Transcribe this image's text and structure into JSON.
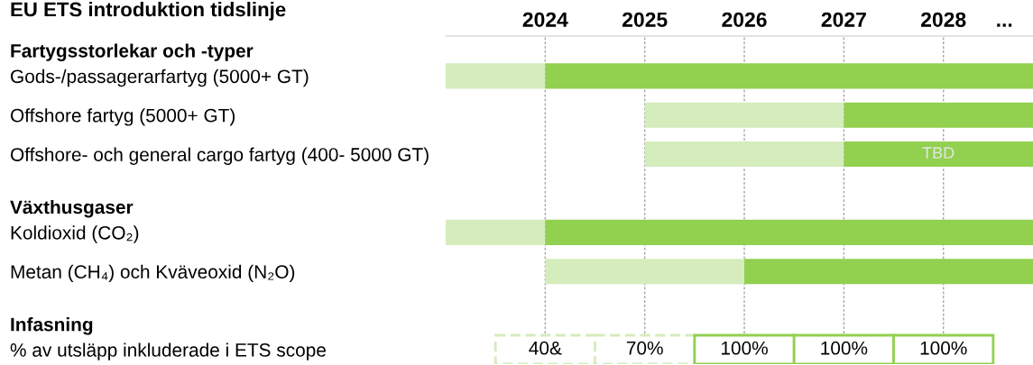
{
  "chart_data": {
    "type": "bar",
    "orientation": "horizontal",
    "title": "EU ETS introduktion tidslinje",
    "categories": [
      "Fartygsstorlekar och -typer",
      "Gods-/passagerarfartyg (5000+ GT)",
      "Offshore fartyg (5000+ GT)",
      "Offshore- och general cargo fartyg (400- 5000 GT)",
      "Växthusgaser",
      "Koldioxid (CO₂)",
      "Metan (CH₄) och Kväveoxid (N₂O)",
      "Infasning",
      "% av utsläpp inkluderade i ETS scope"
    ],
    "series": [
      {
        "color": "#d5ecbc",
        "base": [
          null,
          2023,
          2025,
          2025,
          null,
          2023,
          2024,
          null,
          null
        ],
        "values": [
          null,
          1,
          2,
          2,
          null,
          1,
          2,
          null,
          null
        ]
      },
      {
        "color": "#92d050",
        "base": [
          null,
          2024,
          2027,
          2027,
          null,
          2024,
          2026,
          null,
          null
        ],
        "values": [
          null,
          4.9,
          1.9,
          1.9,
          null,
          4.9,
          2.9,
          null,
          null
        ],
        "value_labels": [
          null,
          null,
          null,
          "TBD",
          null,
          null,
          null,
          null,
          null
        ]
      },
      {
        "color": "#d5ecbc",
        "line_style": "dashed",
        "base": [
          null,
          null,
          null,
          null,
          null,
          null,
          null,
          null,
          2023.5
        ],
        "values": [
          null,
          null,
          null,
          null,
          null,
          null,
          null,
          null,
          1
        ]
      },
      {
        "color": "#d5ecbc",
        "line_style": "dashed",
        "base": [
          null,
          null,
          null,
          null,
          null,
          null,
          null,
          null,
          2024.5
        ],
        "values": [
          null,
          null,
          null,
          null,
          null,
          null,
          null,
          null,
          1
        ]
      },
      {
        "color": "#92d050",
        "line_style": "solid",
        "base": [
          null,
          null,
          null,
          null,
          null,
          null,
          null,
          null,
          2025.5
        ],
        "values": [
          null,
          null,
          null,
          null,
          null,
          null,
          null,
          null,
          1
        ]
      },
      {
        "color": "#92d050",
        "line_style": "solid",
        "base": [
          null,
          null,
          null,
          null,
          null,
          null,
          null,
          null,
          2026.5
        ],
        "values": [
          null,
          null,
          null,
          null,
          null,
          null,
          null,
          null,
          1
        ]
      },
      {
        "color": "#92d050",
        "line_style": "solid",
        "base": [
          null,
          null,
          null,
          null,
          null,
          null,
          null,
          null,
          2027.5
        ],
        "values": [
          null,
          null,
          null,
          null,
          null,
          null,
          null,
          null,
          1
        ]
      }
    ],
    "xlim": [
      2023,
      2028.9
    ],
    "xticks": [
      2024,
      2025,
      2026,
      2027,
      2028
    ],
    "grid": "x",
    "annotations": [
      "...",
      "40&",
      "70%",
      "100%",
      "100%",
      "100%"
    ]
  }
}
